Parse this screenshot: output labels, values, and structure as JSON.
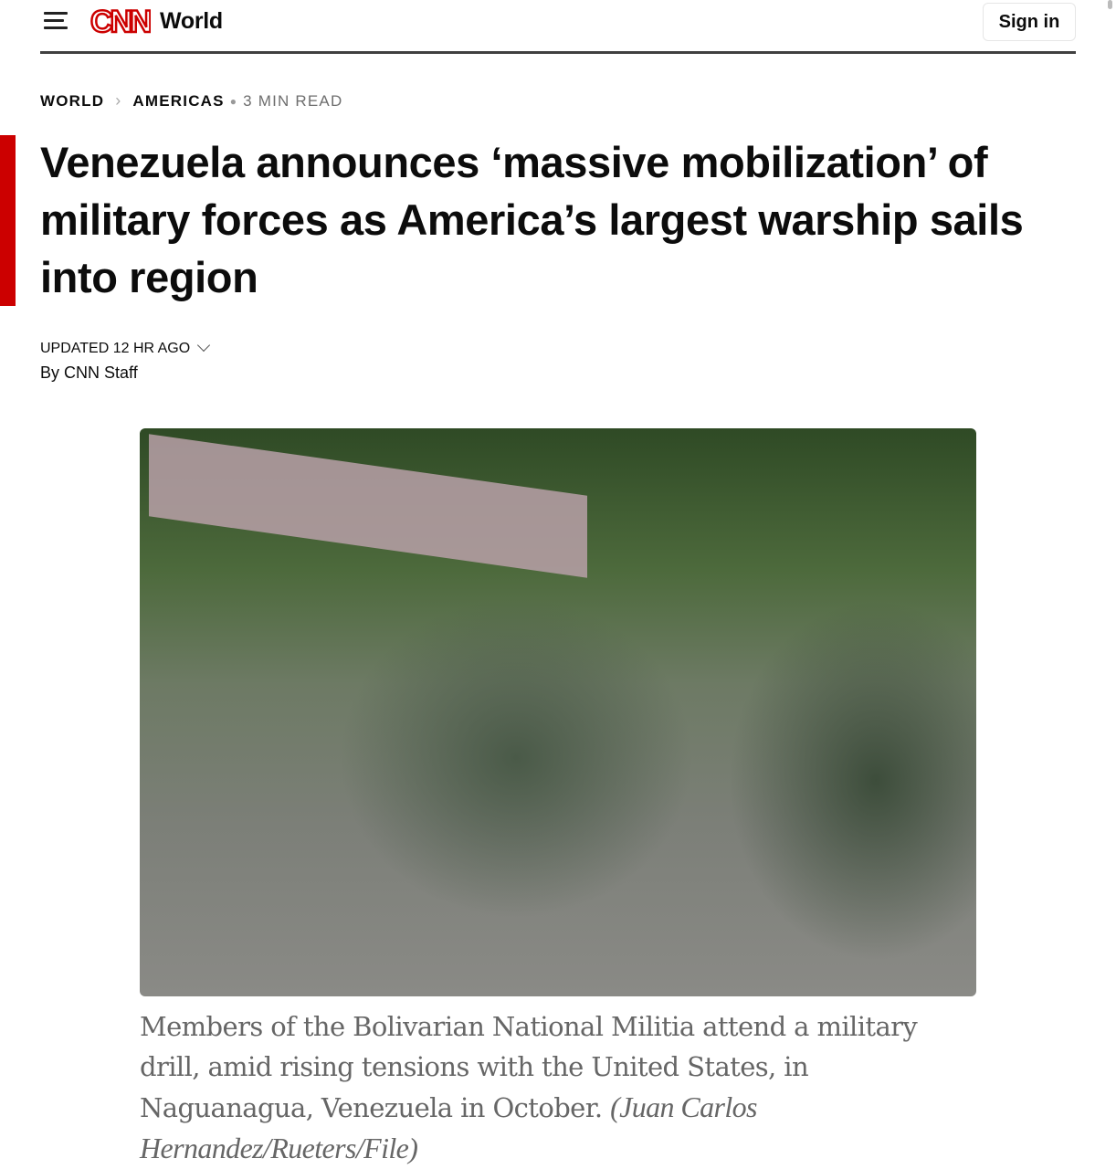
{
  "header": {
    "brand": "CNN",
    "section": "World",
    "sign_in": "Sign in"
  },
  "breadcrumb": {
    "items": [
      "WORLD",
      "AMERICAS"
    ],
    "read_time": "3 MIN READ"
  },
  "article": {
    "headline": "Venezuela announces ‘massive mobilization’ of military forces as America’s largest warship sails into region",
    "updated": "UPDATED 12 HR AGO",
    "byline": "By CNN Staff",
    "caption": "Members of the Bolivarian National Militia attend a military drill, amid rising tensions with the United States, in Naguanagua, Venezuela in October.",
    "credit": "(Juan Carlos Hernandez/Rueters/File)"
  },
  "colors": {
    "accent": "#cc0000",
    "text": "#0c0c0c",
    "caption": "#666666"
  }
}
